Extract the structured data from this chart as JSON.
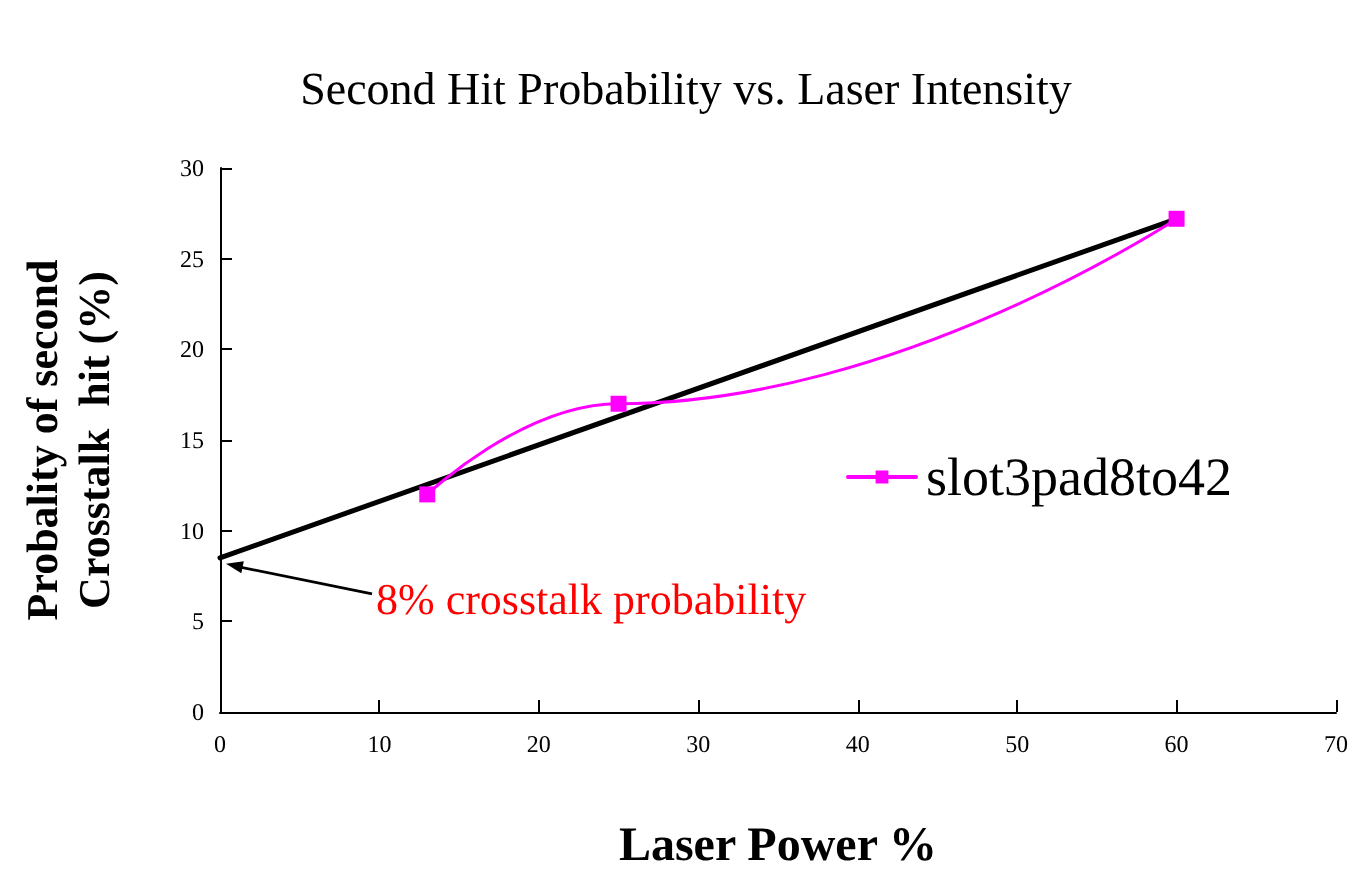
{
  "chart_data": {
    "type": "line",
    "title": "Second Hit Probability vs. Laser Intensity",
    "xlabel": "Laser Power %",
    "ylabel": "Probality of second\nCrosstalk  hit (%)",
    "x": [
      13,
      25,
      60
    ],
    "series": [
      {
        "name": "slot3pad8to42",
        "color": "#ff00ff",
        "values": [
          12,
          17,
          27.2
        ],
        "marker": "square"
      },
      {
        "type": "line",
        "x": [
          0,
          60
        ],
        "values": [
          8.5,
          27.2
        ],
        "color": "#000000",
        "marker": "none"
      }
    ],
    "xlim": [
      0,
      70
    ],
    "xticks": [
      0,
      10,
      20,
      30,
      40,
      50,
      60,
      70
    ],
    "ylim": [
      0,
      30
    ],
    "yticks": [
      0,
      5,
      10,
      15,
      20,
      25,
      30
    ],
    "grid": false,
    "legend": "right",
    "line_style": "solid",
    "annotations": [
      {
        "text": "8% crosstalk probability",
        "x": 0,
        "y": 8.5
      }
    ]
  }
}
